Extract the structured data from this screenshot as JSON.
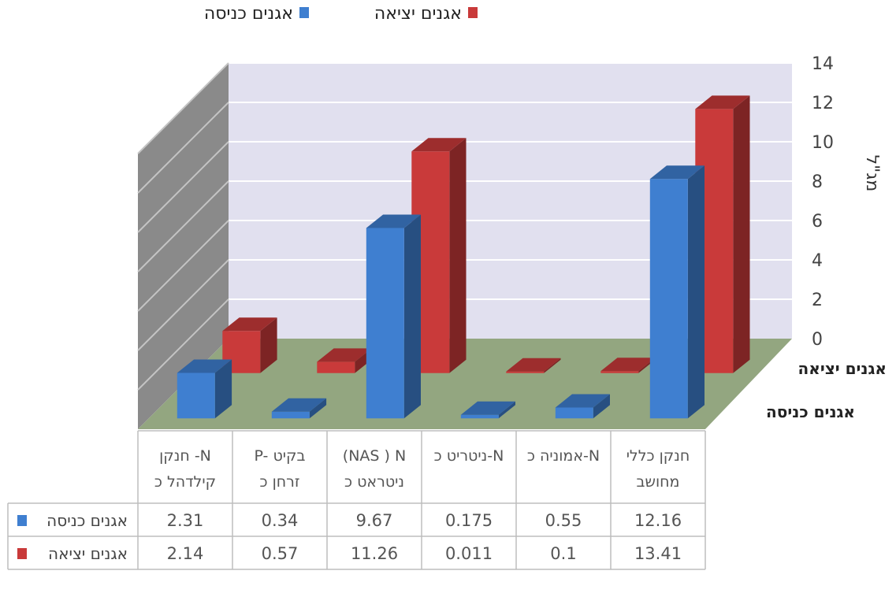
{
  "chart_data": {
    "type": "bar",
    "subtype": "3d-clustered",
    "ylabel": "מג\"ל",
    "ylim": [
      0,
      14
    ],
    "yticks": [
      0,
      2,
      4,
      6,
      8,
      10,
      12,
      14
    ],
    "legend_position": "top",
    "legend": [
      {
        "name": "אגנים כניסה",
        "color": "#3f7fd0"
      },
      {
        "name": "אגנים יציאה",
        "color": "#c93a3a"
      }
    ],
    "depth_labels": [
      "אגנים יציאה",
      "אגנים כניסה"
    ],
    "categories": [
      [
        "חנקן -N",
        "קילדהל כ"
      ],
      [
        "P- בקיט",
        "זרחן כ"
      ],
      [
        "(NAS ) N",
        "ניטראט כ"
      ],
      [
        "ניטריט כ-N"
      ],
      [
        "אמוניה כ-N"
      ],
      [
        "חנקן כללי",
        "מחושב"
      ]
    ],
    "series": [
      {
        "name": "אגנים כניסה",
        "row_label": "אגנים כניסה",
        "color": "#3f7fd0",
        "values": [
          2.31,
          0.34,
          9.67,
          0.175,
          0.55,
          12.16
        ],
        "value_labels": [
          "2.31",
          "0.34",
          "9.67",
          "0.175",
          "0.55",
          "12.16"
        ]
      },
      {
        "name": "אגנים יציאה",
        "row_label": "אגנים יציאה",
        "color": "#c93a3a",
        "values": [
          2.14,
          0.57,
          11.26,
          0.011,
          0.1,
          13.41
        ],
        "value_labels": [
          "2.14",
          "0.57",
          "11.26",
          "0.011",
          "0.1",
          "13.41"
        ]
      }
    ]
  },
  "colors": {
    "back_wall": "#e1e0ef",
    "side_wall": "#8a8a8a",
    "floor": "#93a680",
    "grid": "#ffffff",
    "table_border": "#bdbdbd"
  }
}
